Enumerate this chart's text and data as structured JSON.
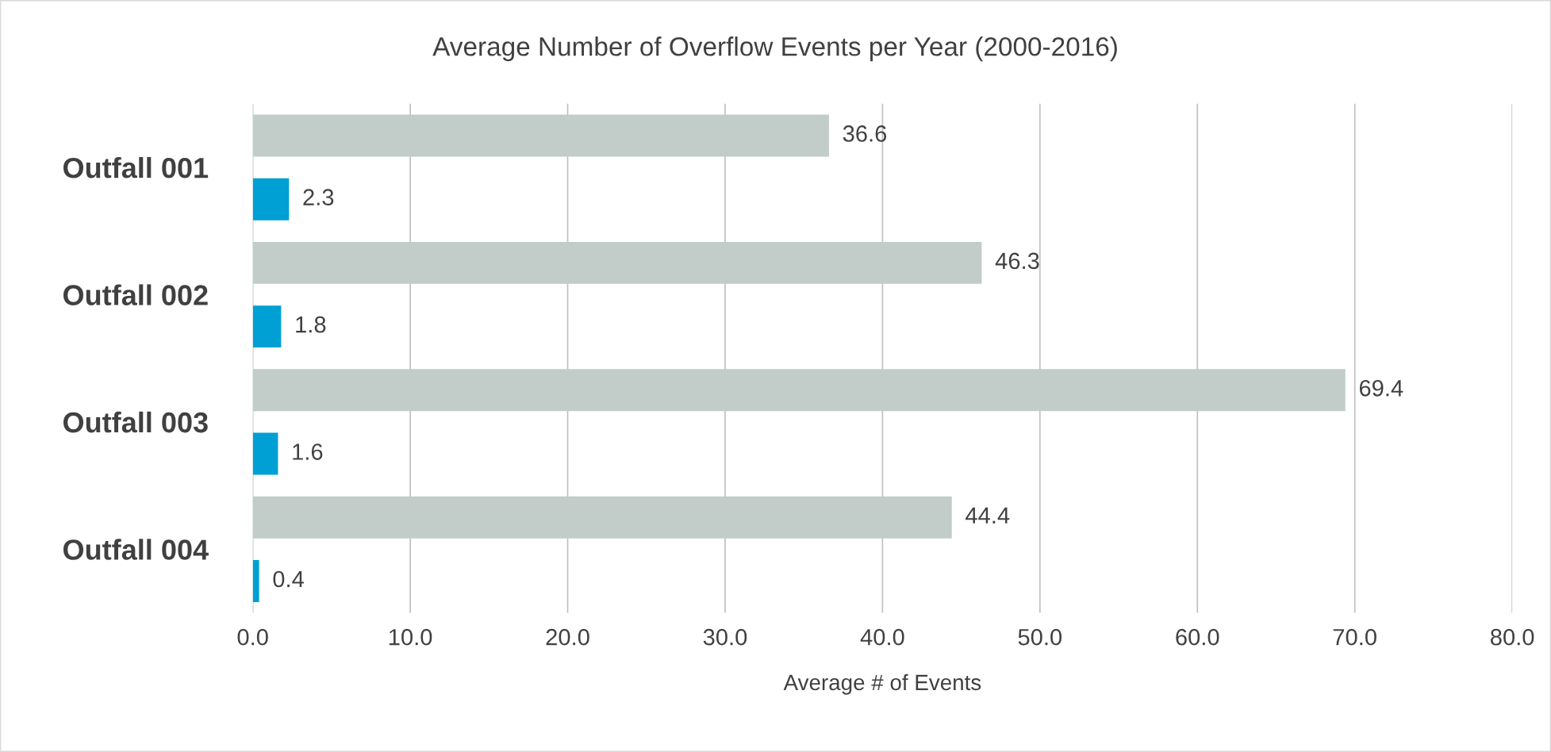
{
  "chart_data": {
    "type": "bar",
    "orientation": "horizontal",
    "title": "Average Number of Overflow Events per Year (2000-2016)",
    "xlabel": "Average # of Events",
    "categories": [
      "Outfall 001",
      "Outfall 002",
      "Outfall 003",
      "Outfall 004"
    ],
    "series": [
      {
        "color": "#c2ccc9",
        "values": [
          36.6,
          46.3,
          69.4,
          44.4
        ]
      },
      {
        "color": "#009fd4",
        "values": [
          2.3,
          1.8,
          1.6,
          0.4
        ]
      }
    ],
    "xlim": [
      0,
      80
    ],
    "xticks": [
      {
        "value": 0,
        "label": "0.0"
      },
      {
        "value": 10,
        "label": "10.0"
      },
      {
        "value": 20,
        "label": "20.0"
      },
      {
        "value": 30,
        "label": "30.0"
      },
      {
        "value": 40,
        "label": "40.0"
      },
      {
        "value": 50,
        "label": "50.0"
      },
      {
        "value": 60,
        "label": "60.0"
      },
      {
        "value": 70,
        "label": "70.0"
      },
      {
        "value": 80,
        "label": "80.0"
      }
    ],
    "grid": "x",
    "data_labels": true,
    "legend": false
  }
}
